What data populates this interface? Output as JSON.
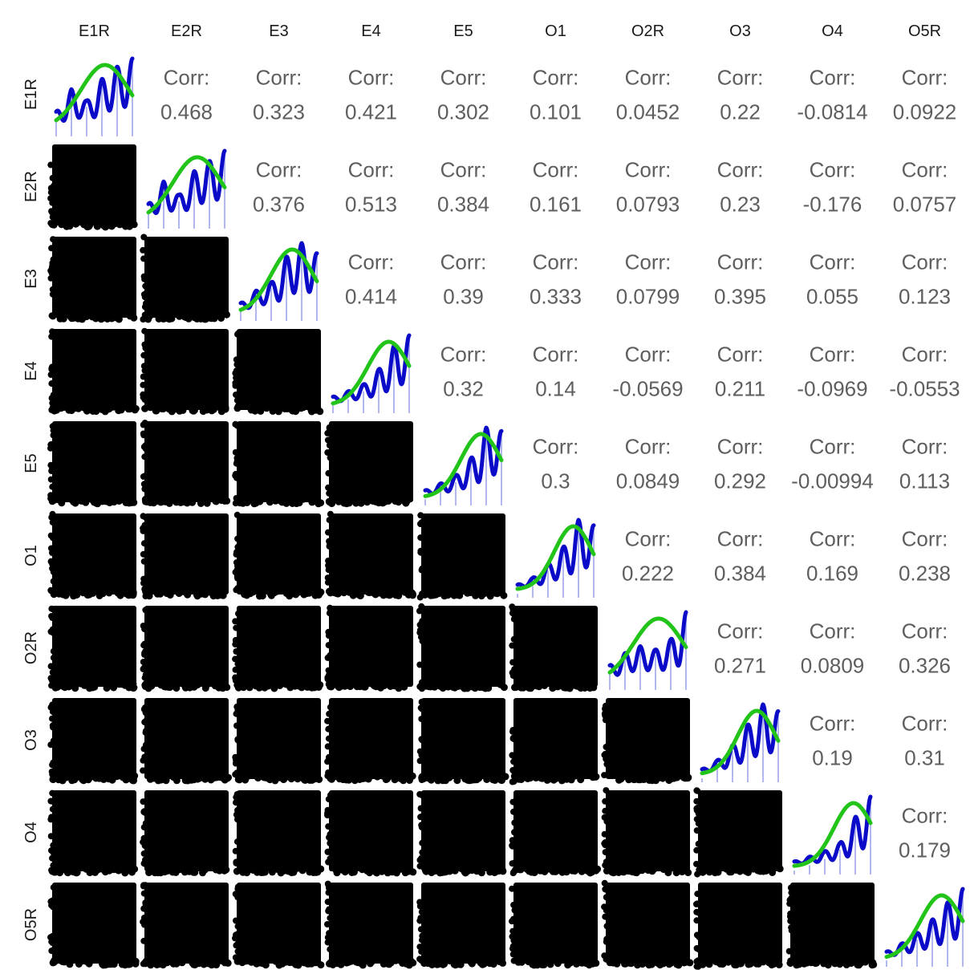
{
  "chart_data": {
    "type": "scatter-matrix",
    "variables": [
      "E1R",
      "E2R",
      "E3",
      "E4",
      "E5",
      "O1",
      "O2R",
      "O3",
      "O4",
      "O5R"
    ],
    "corr_label": "Corr:",
    "correlations": [
      [
        "",
        "0.468",
        "0.323",
        "0.421",
        "0.302",
        "0.101",
        "0.0452",
        "0.22",
        "-0.0814",
        "0.0922"
      ],
      [
        "",
        "",
        "0.376",
        "0.513",
        "0.384",
        "0.161",
        "0.0793",
        "0.23",
        "-0.176",
        "0.0757"
      ],
      [
        "",
        "",
        "",
        "0.414",
        "0.39",
        "0.333",
        "0.0799",
        "0.395",
        "0.055",
        "0.123"
      ],
      [
        "",
        "",
        "",
        "",
        "0.32",
        "0.14",
        "-0.0569",
        "0.211",
        "-0.0969",
        "-0.0553"
      ],
      [
        "",
        "",
        "",
        "",
        "",
        "0.3",
        "0.0849",
        "0.292",
        "-0.00994",
        "0.113"
      ],
      [
        "",
        "",
        "",
        "",
        "",
        "",
        "0.222",
        "0.384",
        "0.169",
        "0.238"
      ],
      [
        "",
        "",
        "",
        "",
        "",
        "",
        "",
        "0.271",
        "0.0809",
        "0.326"
      ],
      [
        "",
        "",
        "",
        "",
        "",
        "",
        "",
        "",
        "0.19",
        "0.31"
      ],
      [
        "",
        "",
        "",
        "",
        "",
        "",
        "",
        "",
        "",
        "0.179"
      ],
      [
        "",
        "",
        "",
        "",
        "",
        "",
        "",
        "",
        "",
        ""
      ]
    ],
    "diagonal": {
      "kind": "histogram-density-normal",
      "bar_color": "#b3b7f0",
      "density_color": "#0a0ac8",
      "normal_color": "#22c41a",
      "density_profiles": [
        [
          0.22,
          0.55,
          0.38,
          0.7,
          0.88,
          1.0
        ],
        [
          0.22,
          0.55,
          0.35,
          0.7,
          0.85,
          1.0
        ],
        [
          0.12,
          0.3,
          0.42,
          0.8,
          1.0,
          0.85
        ],
        [
          0.1,
          0.18,
          0.28,
          0.5,
          0.85,
          1.0
        ],
        [
          0.08,
          0.18,
          0.3,
          0.55,
          1.0,
          0.95
        ],
        [
          0.05,
          0.15,
          0.35,
          0.6,
          1.0,
          0.92
        ],
        [
          0.22,
          0.4,
          0.5,
          0.45,
          0.6,
          1.0
        ],
        [
          0.05,
          0.18,
          0.4,
          0.7,
          1.0,
          0.9
        ],
        [
          0.05,
          0.12,
          0.2,
          0.32,
          0.7,
          1.0
        ],
        [
          0.08,
          0.2,
          0.35,
          0.55,
          0.8,
          1.0
        ]
      ]
    },
    "lower": {
      "kind": "scatter",
      "point_color": "#000000"
    },
    "scale_levels": [
      1,
      2,
      3,
      4,
      5,
      6
    ],
    "grid": false
  }
}
